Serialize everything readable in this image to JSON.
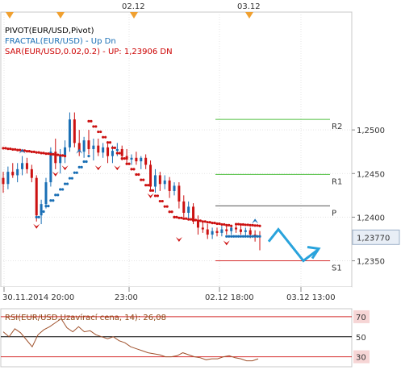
{
  "chart_data": {
    "type": "candlestick",
    "price_chart": {
      "legend": [
        {
          "text": "PIVOT(EUR/USD,Pivot)",
          "color": "#000000"
        },
        {
          "text": "FRACTAL(EUR/USD) - Up  Dn",
          "color": "#1a6fb5"
        },
        {
          "text": "SAR(EUR/USD,0.02,0.2) - UP: 1,23906 DN",
          "color": "#cc0000"
        }
      ],
      "y_ticks": [
        "1,2500",
        "1,2450",
        "1,2400",
        "1,2350"
      ],
      "y_tick_values": [
        1.25,
        1.245,
        1.24,
        1.235
      ],
      "ylim": [
        1.232,
        1.2635
      ],
      "current_price": "1,23770",
      "current_price_value": 1.2377,
      "x_ticks": [
        "30.11.2014 20:00",
        "23:00",
        "02.12 18:00",
        "03.12 13:00"
      ],
      "top_markers": [
        "02.12",
        "03.12"
      ],
      "pivot_levels": [
        {
          "name": "R2",
          "value": 1.2512,
          "color": "#4fbf3f"
        },
        {
          "name": "R1",
          "value": 1.2449,
          "color": "#4fbf3f"
        },
        {
          "name": "P",
          "value": 1.2413,
          "color": "#555555"
        },
        {
          "name": "S1",
          "value": 1.235,
          "color": "#d42b2b"
        }
      ],
      "candles": [
        [
          1.2445,
          1.2452,
          1.2428,
          1.2438
        ],
        [
          1.2438,
          1.2458,
          1.2432,
          1.2452
        ],
        [
          1.2452,
          1.2462,
          1.2445,
          1.2448
        ],
        [
          1.2448,
          1.2462,
          1.244,
          1.2455
        ],
        [
          1.2455,
          1.247,
          1.2448,
          1.2462
        ],
        [
          1.2462,
          1.2468,
          1.245,
          1.2455
        ],
        [
          1.2455,
          1.246,
          1.244,
          1.2445
        ],
        [
          1.2445,
          1.2448,
          1.2395,
          1.2402
        ],
        [
          1.2402,
          1.242,
          1.2392,
          1.2415
        ],
        [
          1.2415,
          1.2445,
          1.241,
          1.244
        ],
        [
          1.244,
          1.248,
          1.2435,
          1.2475
        ],
        [
          1.2475,
          1.249,
          1.2455,
          1.2462
        ],
        [
          1.2462,
          1.2478,
          1.245,
          1.247
        ],
        [
          1.247,
          1.2488,
          1.2462,
          1.248
        ],
        [
          1.248,
          1.252,
          1.2475,
          1.2512
        ],
        [
          1.2512,
          1.252,
          1.248,
          1.2485
        ],
        [
          1.2485,
          1.25,
          1.247,
          1.2475
        ],
        [
          1.2475,
          1.2492,
          1.2468,
          1.2488
        ],
        [
          1.2488,
          1.25,
          1.2472,
          1.2478
        ],
        [
          1.2478,
          1.249,
          1.2465,
          1.2482
        ],
        [
          1.2482,
          1.249,
          1.247,
          1.2474
        ],
        [
          1.2474,
          1.2485,
          1.2468,
          1.248
        ],
        [
          1.248,
          1.2484,
          1.2462,
          1.247
        ],
        [
          1.247,
          1.2482,
          1.2462,
          1.2476
        ],
        [
          1.2476,
          1.2485,
          1.247,
          1.2478
        ],
        [
          1.2478,
          1.2482,
          1.2465,
          1.247
        ],
        [
          1.247,
          1.2478,
          1.2462,
          1.2466
        ],
        [
          1.2466,
          1.2472,
          1.246,
          1.2468
        ],
        [
          1.2468,
          1.2475,
          1.246,
          1.2464
        ],
        [
          1.2464,
          1.247,
          1.2455,
          1.2468
        ],
        [
          1.2468,
          1.2472,
          1.2455,
          1.246
        ],
        [
          1.246,
          1.2465,
          1.243,
          1.2435
        ],
        [
          1.2435,
          1.2455,
          1.2428,
          1.2448
        ],
        [
          1.2448,
          1.2452,
          1.243,
          1.2438
        ],
        [
          1.2438,
          1.2448,
          1.2432,
          1.2442
        ],
        [
          1.2442,
          1.2446,
          1.2422,
          1.243
        ],
        [
          1.243,
          1.244,
          1.2425,
          1.2436
        ],
        [
          1.2436,
          1.244,
          1.241,
          1.2418
        ],
        [
          1.2418,
          1.2425,
          1.24,
          1.2405
        ],
        [
          1.2405,
          1.2418,
          1.2398,
          1.2412
        ],
        [
          1.2412,
          1.2416,
          1.2392,
          1.2395
        ],
        [
          1.2395,
          1.2402,
          1.238,
          1.2388
        ],
        [
          1.2388,
          1.2395,
          1.2382,
          1.2386
        ],
        [
          1.2386,
          1.2392,
          1.2375,
          1.238
        ],
        [
          1.238,
          1.2388,
          1.2375,
          1.2384
        ],
        [
          1.2384,
          1.2388,
          1.2378,
          1.2382
        ],
        [
          1.2382,
          1.239,
          1.2378,
          1.2386
        ],
        [
          1.2386,
          1.2392,
          1.238,
          1.2384
        ],
        [
          1.2384,
          1.239,
          1.238,
          1.2388
        ],
        [
          1.2388,
          1.2392,
          1.2382,
          1.2386
        ],
        [
          1.2386,
          1.239,
          1.238,
          1.2383
        ],
        [
          1.2383,
          1.2388,
          1.2378,
          1.2385
        ],
        [
          1.2385,
          1.2388,
          1.2376,
          1.238
        ],
        [
          1.238,
          1.2385,
          1.2372,
          1.2378
        ],
        [
          1.2378,
          1.2384,
          1.2362,
          1.2377
        ]
      ],
      "sar": [
        {
          "from_idx": 0,
          "to_idx": 13,
          "start": 1.2479,
          "end": 1.247,
          "side": "above"
        },
        {
          "from_idx": 7,
          "to_idx": 18,
          "start": 1.24,
          "end": 1.247,
          "side": "below"
        },
        {
          "from_idx": 18,
          "to_idx": 36,
          "start": 1.251,
          "end": 1.24,
          "side": "above"
        },
        {
          "from_idx": 36,
          "to_idx": 48,
          "start": 1.24,
          "end": 1.239,
          "side": "above"
        },
        {
          "from_idx": 47,
          "to_idx": 54,
          "start": 1.2378,
          "end": 1.2378,
          "side": "below"
        },
        {
          "from_idx": 49,
          "to_idx": 54,
          "start": 1.2392,
          "end": 1.239,
          "side": "above"
        }
      ],
      "fractals_up": [
        [
          4,
          1.247
        ],
        [
          16,
          1.247
        ],
        [
          53,
          1.239
        ]
      ],
      "fractals_dn": [
        [
          7,
          1.2395
        ],
        [
          11,
          1.2455
        ],
        [
          13,
          1.2462
        ],
        [
          20,
          1.2462
        ],
        [
          24,
          1.2462
        ],
        [
          31,
          1.243
        ],
        [
          37,
          1.238
        ],
        [
          47,
          1.2376
        ]
      ],
      "projection": [
        [
          1.2386,
          "2.5"
        ],
        [
          1.235,
          "10.5"
        ],
        [
          1.2362,
          "13.5"
        ]
      ]
    },
    "rsi": {
      "label": "RSI(EUR/USD,Uzavírací cena, 14): 26,08",
      "levels": [
        {
          "value": 70,
          "label": "70",
          "color": "#d42b2b"
        },
        {
          "value": 50,
          "label": "50",
          "color": "#000000"
        },
        {
          "value": 30,
          "label": "30",
          "color": "#d42b2b"
        }
      ],
      "ylim": [
        20,
        78
      ],
      "values": [
        55,
        50,
        58,
        54,
        47,
        40,
        52,
        57,
        60,
        64,
        68,
        59,
        55,
        60,
        55,
        56,
        52,
        50,
        48,
        50,
        46,
        44,
        40,
        38,
        36,
        34,
        33,
        32,
        30,
        30,
        31,
        34,
        32,
        30,
        29,
        27,
        28,
        28,
        30,
        31,
        29,
        28,
        26,
        26,
        28
      ]
    }
  }
}
